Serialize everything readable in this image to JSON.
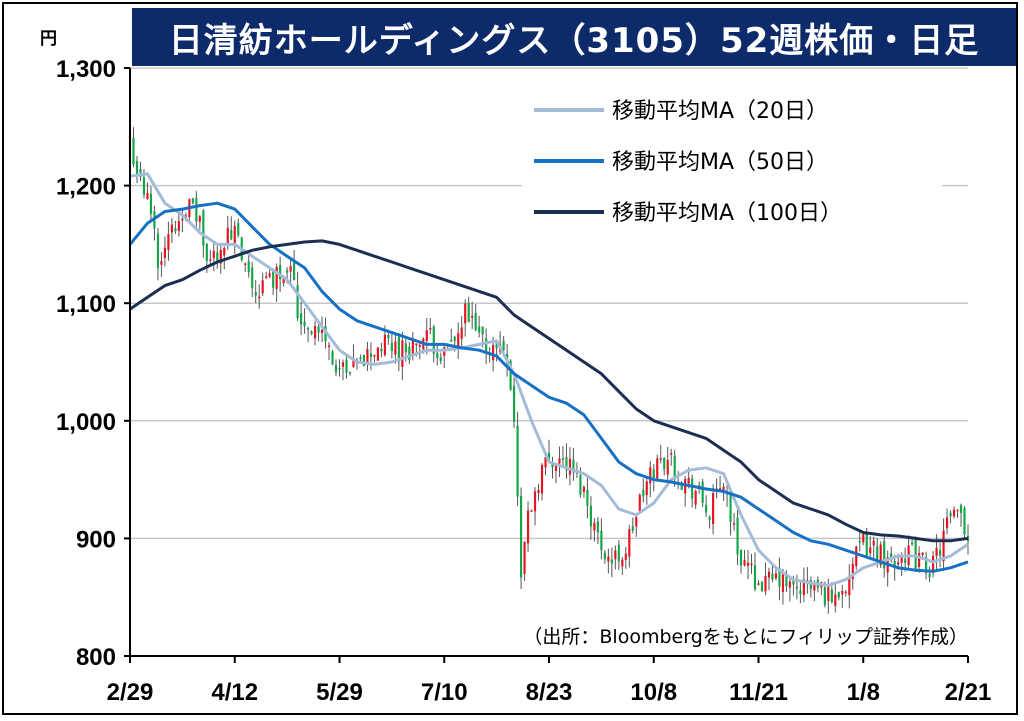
{
  "title": "日清紡ホールディングス（3105）52週株価・日足",
  "colors": {
    "title_bg": "#0d2a6b",
    "up": "#e6141e",
    "down": "#12a64a",
    "ma20": "#a4bcd8",
    "ma50": "#1671c4",
    "ma100": "#1c2f52",
    "grid": "#c8c8c8"
  },
  "chart_data": {
    "type": "candlestick",
    "title": "日清紡ホールディングス（3105）52週株価・日足",
    "ylabel": "円",
    "ylim": [
      800,
      1300
    ],
    "yticks": [
      800,
      900,
      1000,
      1100,
      1200,
      1300
    ],
    "ytick_labels": [
      "800",
      "900",
      "1,000",
      "1,100",
      "1,200",
      "1,300"
    ],
    "xticks": [
      {
        "label": "2/29",
        "day": 0
      },
      {
        "label": "4/12",
        "day": 30
      },
      {
        "label": "5/29",
        "day": 60
      },
      {
        "label": "7/10",
        "day": 90
      },
      {
        "label": "8/23",
        "day": 120
      },
      {
        "label": "10/8",
        "day": 150
      },
      {
        "label": "11/21",
        "day": 180
      },
      {
        "label": "1/8",
        "day": 210
      },
      {
        "label": "2/21",
        "day": 240
      }
    ],
    "x_range": [
      0,
      240
    ],
    "grid": true,
    "legend_position": "top-right",
    "legend": [
      {
        "name": "移動平均MA（20日）",
        "key": "ma20"
      },
      {
        "name": "移動平均MA（50日）",
        "key": "ma50"
      },
      {
        "name": "移動平均MA（100日）",
        "key": "ma100"
      }
    ],
    "note": "（出所：Bloombergをもとにフィリップ証券作成）",
    "close_keypoints": [
      [
        0,
        1240
      ],
      [
        3,
        1200
      ],
      [
        6,
        1180
      ],
      [
        8,
        1140
      ],
      [
        12,
        1160
      ],
      [
        16,
        1185
      ],
      [
        20,
        1170
      ],
      [
        22,
        1130
      ],
      [
        26,
        1150
      ],
      [
        30,
        1160
      ],
      [
        33,
        1125
      ],
      [
        36,
        1110
      ],
      [
        40,
        1120
      ],
      [
        44,
        1130
      ],
      [
        46,
        1140
      ],
      [
        48,
        1090
      ],
      [
        52,
        1080
      ],
      [
        56,
        1070
      ],
      [
        58,
        1050
      ],
      [
        60,
        1045
      ],
      [
        62,
        1035
      ],
      [
        66,
        1050
      ],
      [
        70,
        1060
      ],
      [
        74,
        1065
      ],
      [
        78,
        1060
      ],
      [
        82,
        1065
      ],
      [
        86,
        1070
      ],
      [
        90,
        1055
      ],
      [
        94,
        1070
      ],
      [
        96,
        1090
      ],
      [
        100,
        1070
      ],
      [
        104,
        1060
      ],
      [
        106,
        1065
      ],
      [
        108,
        1060
      ],
      [
        110,
        1000
      ],
      [
        112,
        870
      ],
      [
        114,
        920
      ],
      [
        118,
        960
      ],
      [
        122,
        970
      ],
      [
        126,
        960
      ],
      [
        130,
        940
      ],
      [
        134,
        900
      ],
      [
        138,
        880
      ],
      [
        142,
        890
      ],
      [
        146,
        930
      ],
      [
        150,
        960
      ],
      [
        154,
        970
      ],
      [
        158,
        950
      ],
      [
        162,
        940
      ],
      [
        166,
        920
      ],
      [
        170,
        950
      ],
      [
        172,
        920
      ],
      [
        174,
        890
      ],
      [
        178,
        870
      ],
      [
        182,
        860
      ],
      [
        186,
        865
      ],
      [
        190,
        855
      ],
      [
        194,
        860
      ],
      [
        198,
        855
      ],
      [
        202,
        850
      ],
      [
        206,
        870
      ],
      [
        210,
        895
      ],
      [
        214,
        890
      ],
      [
        218,
        880
      ],
      [
        222,
        890
      ],
      [
        226,
        880
      ],
      [
        230,
        875
      ],
      [
        234,
        910
      ],
      [
        238,
        920
      ],
      [
        240,
        900
      ]
    ],
    "moving_averages": {
      "ma20": [
        [
          0,
          1208
        ],
        [
          5,
          1210
        ],
        [
          10,
          1185
        ],
        [
          15,
          1175
        ],
        [
          20,
          1160
        ],
        [
          25,
          1150
        ],
        [
          30,
          1150
        ],
        [
          35,
          1140
        ],
        [
          40,
          1130
        ],
        [
          45,
          1120
        ],
        [
          50,
          1100
        ],
        [
          55,
          1080
        ],
        [
          60,
          1060
        ],
        [
          65,
          1050
        ],
        [
          70,
          1048
        ],
        [
          75,
          1050
        ],
        [
          80,
          1055
        ],
        [
          85,
          1060
        ],
        [
          90,
          1060
        ],
        [
          95,
          1062
        ],
        [
          100,
          1065
        ],
        [
          105,
          1068
        ],
        [
          110,
          1040
        ],
        [
          115,
          1000
        ],
        [
          120,
          965
        ],
        [
          125,
          960
        ],
        [
          130,
          955
        ],
        [
          135,
          945
        ],
        [
          140,
          925
        ],
        [
          145,
          920
        ],
        [
          150,
          930
        ],
        [
          155,
          950
        ],
        [
          160,
          958
        ],
        [
          165,
          960
        ],
        [
          170,
          955
        ],
        [
          175,
          920
        ],
        [
          180,
          890
        ],
        [
          185,
          875
        ],
        [
          190,
          865
        ],
        [
          195,
          862
        ],
        [
          200,
          860
        ],
        [
          205,
          865
        ],
        [
          210,
          875
        ],
        [
          215,
          880
        ],
        [
          220,
          885
        ],
        [
          225,
          885
        ],
        [
          230,
          880
        ],
        [
          235,
          885
        ],
        [
          240,
          895
        ]
      ],
      "ma50": [
        [
          0,
          1150
        ],
        [
          5,
          1168
        ],
        [
          10,
          1178
        ],
        [
          15,
          1180
        ],
        [
          20,
          1183
        ],
        [
          25,
          1185
        ],
        [
          30,
          1180
        ],
        [
          35,
          1165
        ],
        [
          40,
          1150
        ],
        [
          45,
          1140
        ],
        [
          50,
          1130
        ],
        [
          55,
          1110
        ],
        [
          60,
          1095
        ],
        [
          65,
          1085
        ],
        [
          70,
          1080
        ],
        [
          75,
          1075
        ],
        [
          80,
          1070
        ],
        [
          85,
          1065
        ],
        [
          90,
          1065
        ],
        [
          95,
          1062
        ],
        [
          100,
          1060
        ],
        [
          105,
          1055
        ],
        [
          110,
          1040
        ],
        [
          115,
          1030
        ],
        [
          120,
          1020
        ],
        [
          125,
          1015
        ],
        [
          130,
          1005
        ],
        [
          135,
          985
        ],
        [
          140,
          965
        ],
        [
          145,
          955
        ],
        [
          150,
          950
        ],
        [
          155,
          948
        ],
        [
          160,
          945
        ],
        [
          165,
          942
        ],
        [
          170,
          940
        ],
        [
          175,
          935
        ],
        [
          180,
          925
        ],
        [
          185,
          915
        ],
        [
          190,
          905
        ],
        [
          195,
          898
        ],
        [
          200,
          895
        ],
        [
          205,
          890
        ],
        [
          210,
          885
        ],
        [
          215,
          880
        ],
        [
          220,
          875
        ],
        [
          225,
          873
        ],
        [
          230,
          872
        ],
        [
          235,
          875
        ],
        [
          240,
          880
        ]
      ],
      "ma100": [
        [
          0,
          1095
        ],
        [
          5,
          1105
        ],
        [
          10,
          1115
        ],
        [
          15,
          1120
        ],
        [
          20,
          1128
        ],
        [
          25,
          1135
        ],
        [
          30,
          1140
        ],
        [
          35,
          1145
        ],
        [
          40,
          1148
        ],
        [
          45,
          1150
        ],
        [
          50,
          1152
        ],
        [
          55,
          1153
        ],
        [
          60,
          1150
        ],
        [
          65,
          1145
        ],
        [
          70,
          1140
        ],
        [
          75,
          1135
        ],
        [
          80,
          1130
        ],
        [
          85,
          1125
        ],
        [
          90,
          1120
        ],
        [
          95,
          1115
        ],
        [
          100,
          1110
        ],
        [
          105,
          1105
        ],
        [
          110,
          1090
        ],
        [
          115,
          1080
        ],
        [
          120,
          1070
        ],
        [
          125,
          1060
        ],
        [
          130,
          1050
        ],
        [
          135,
          1040
        ],
        [
          140,
          1025
        ],
        [
          145,
          1010
        ],
        [
          150,
          1000
        ],
        [
          155,
          995
        ],
        [
          160,
          990
        ],
        [
          165,
          985
        ],
        [
          170,
          975
        ],
        [
          175,
          965
        ],
        [
          180,
          950
        ],
        [
          185,
          940
        ],
        [
          190,
          930
        ],
        [
          195,
          925
        ],
        [
          200,
          920
        ],
        [
          205,
          912
        ],
        [
          210,
          905
        ],
        [
          215,
          903
        ],
        [
          220,
          902
        ],
        [
          225,
          900
        ],
        [
          230,
          898
        ],
        [
          235,
          898
        ],
        [
          240,
          900
        ]
      ]
    }
  }
}
